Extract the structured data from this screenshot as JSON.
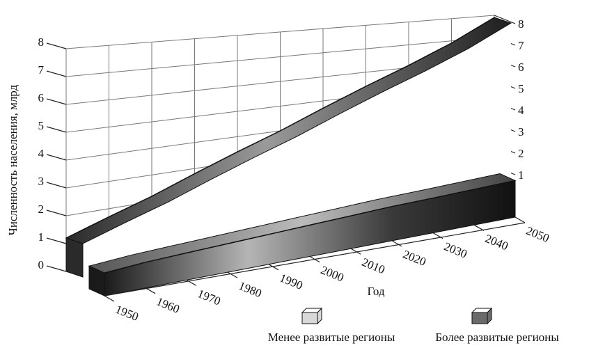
{
  "chart_data": {
    "type": "ribbon3d",
    "x_label": "Год",
    "y_label": "Численность населения, млрд",
    "x": [
      1950,
      1960,
      1970,
      1980,
      1990,
      2000,
      2010,
      2020,
      2030,
      2040,
      2050
    ],
    "xlim": [
      1950,
      2050
    ],
    "xticks": [
      1950,
      1960,
      1970,
      1980,
      1990,
      2000,
      2010,
      2020,
      2030,
      2040,
      2050
    ],
    "ylim": [
      0,
      8
    ],
    "yticks": [
      0,
      1,
      2,
      3,
      4,
      5,
      6,
      7,
      8
    ],
    "y2lim": [
      0,
      8
    ],
    "y2ticks": [
      1,
      2,
      3,
      4,
      5,
      6,
      7,
      8
    ],
    "grid": true,
    "legend": "bottom",
    "series": [
      {
        "name": "Менее развитые регионы",
        "color": "#d8d8d8",
        "values": [
          1.2,
          1.7,
          2.2,
          2.8,
          3.4,
          4.0,
          4.7,
          5.4,
          6.1,
          6.9,
          7.9
        ]
      },
      {
        "name": "Более развитые регионы",
        "color": "#6a6a6a",
        "values": [
          0.8,
          0.9,
          0.95,
          1.0,
          1.05,
          1.1,
          1.15,
          1.2,
          1.22,
          1.25,
          1.28
        ]
      }
    ]
  }
}
